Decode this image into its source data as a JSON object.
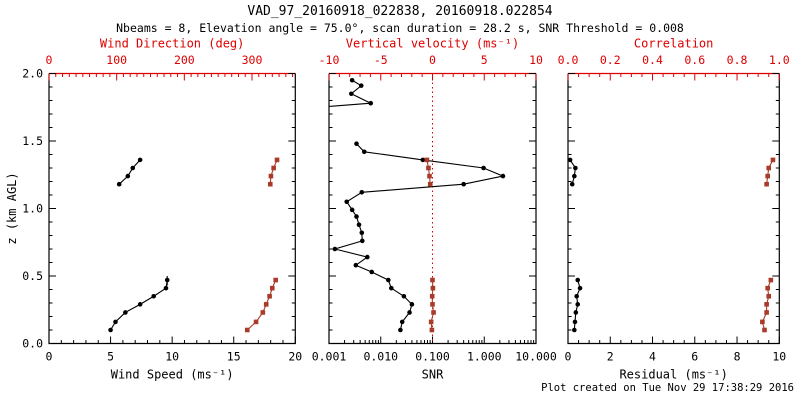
{
  "header": {
    "title": "VAD_97_20160918_022838, 20160918.022854",
    "subtitle": "Nbeams = 8, Elevation angle = 75.0°, scan duration = 28.2 s, SNR Threshold = 0.008"
  },
  "footer": {
    "created": "Plot created on Tue Nov 29 17:38:29 2016"
  },
  "colors": {
    "background": "#ffffff",
    "axis_black": "#000000",
    "axis_red": "#dd0000",
    "data_black": "#000000",
    "data_red": "#a93b2a"
  },
  "chart_data": [
    {
      "name": "wind-panel",
      "type": "scatter",
      "ylabel": "z (km AGL)",
      "ylim": [
        0,
        2
      ],
      "yticks": {
        "values": [
          0,
          0.5,
          1,
          1.5,
          2
        ],
        "labels": [
          "0.0",
          "0.5",
          "1.0",
          "1.5",
          "2.0"
        ],
        "minor_step": 0.1
      },
      "show_ytick_labels": true,
      "bottom_axis": {
        "label": "Wind Speed (ms⁻¹)",
        "scale": "linear",
        "min": 0,
        "max": 20,
        "ticks": {
          "values": [
            0,
            5,
            10,
            15,
            20
          ],
          "labels": [
            "0",
            "5",
            "10",
            "15",
            "20"
          ]
        },
        "minor_step": 1
      },
      "top_axis": {
        "label": "Wind Direction (deg)",
        "scale": "linear",
        "min": 0,
        "max": 364,
        "ticks": {
          "values": [
            0,
            100,
            200,
            300
          ],
          "labels": [
            "0",
            "100",
            "200",
            "300"
          ]
        },
        "minor_step": 10
      },
      "series": [
        {
          "name": "wind-speed",
          "axis": "bottom",
          "color": "black",
          "marker": "circle",
          "segments": [
            {
              "z": [
                0.1,
                0.16,
                0.23,
                0.29,
                0.35,
                0.41,
                0.47
              ],
              "v": [
                5.0,
                5.4,
                6.2,
                7.4,
                8.5,
                9.5,
                9.6
              ]
            },
            {
              "z": [
                1.18,
                1.24,
                1.3,
                1.36
              ],
              "v": [
                5.7,
                6.4,
                6.8,
                7.4
              ]
            }
          ],
          "error_bar": {
            "v": 9.6,
            "z_from": 0.43,
            "z_to": 0.5
          }
        },
        {
          "name": "wind-direction",
          "axis": "top",
          "color": "red",
          "marker": "square",
          "segments": [
            {
              "z": [
                0.1,
                0.16,
                0.23,
                0.29,
                0.35,
                0.41,
                0.47
              ],
              "v": [
                293,
                306,
                316,
                321,
                326,
                330,
                335
              ]
            },
            {
              "z": [
                1.18,
                1.24,
                1.3,
                1.36
              ],
              "v": [
                327,
                328,
                332,
                337
              ]
            }
          ]
        }
      ]
    },
    {
      "name": "snr-panel",
      "type": "scatter",
      "ylim": [
        0,
        2
      ],
      "yticks": {
        "values": [
          0,
          0.5,
          1,
          1.5,
          2
        ],
        "labels": [
          "0.0",
          "0.5",
          "1.0",
          "1.5",
          "2.0"
        ],
        "minor_step": 0.1
      },
      "show_ytick_labels": false,
      "bottom_axis": {
        "label": "SNR",
        "scale": "log",
        "min": 0.001,
        "max": 10,
        "ticks": {
          "values": [
            0.001,
            0.01,
            0.1,
            1,
            10
          ],
          "labels": [
            "0.001",
            "0.010",
            "0.100",
            "1.000",
            "10.000"
          ]
        }
      },
      "top_axis": {
        "label": "Vertical velocity (ms⁻¹)",
        "scale": "linear",
        "min": -10,
        "max": 10,
        "ticks": {
          "values": [
            -10,
            -5,
            0,
            5,
            10
          ],
          "labels": [
            "-10",
            "-5",
            "0",
            "5",
            "10"
          ]
        },
        "minor_step": 1
      },
      "reference_line": {
        "axis": "top",
        "value": 0,
        "style": "dotted",
        "color": "red"
      },
      "series": [
        {
          "name": "snr",
          "axis": "bottom",
          "color": "black",
          "marker": "circle",
          "segments": [
            {
              "z": [
                0.1,
                0.16,
                0.23,
                0.29,
                0.35,
                0.41,
                0.47,
                0.53,
                0.58,
                0.64,
                0.7,
                0.76,
                0.82,
                0.88,
                0.94,
                0.99,
                1.05,
                1.12,
                1.18,
                1.24,
                1.3,
                1.36,
                1.42,
                1.48
              ],
              "v": [
                0.024,
                0.026,
                0.036,
                0.04,
                0.028,
                0.016,
                0.014,
                0.0067,
                0.0033,
                0.0055,
                0.0013,
                0.0044,
                0.0043,
                0.0038,
                0.0034,
                0.0028,
                0.0022,
                0.0043,
                0.4,
                2.3,
                0.97,
                0.065,
                0.0048,
                0.0034
              ]
            },
            {
              "z": [
                1.78,
                1.85,
                1.91,
                1.95
              ],
              "v": [
                0.0064,
                0.0027,
                0.0042,
                0.0028
              ],
              "lead_in": {
                "z": 1.755,
                "v": 0.0009
              }
            }
          ]
        },
        {
          "name": "vertical-velocity",
          "axis": "top",
          "color": "red",
          "marker": "square",
          "segments": [
            {
              "z": [
                0.1,
                0.16,
                0.23,
                0.29,
                0.35,
                0.41,
                0.47
              ],
              "v": [
                -0.06,
                -0.13,
                0.1,
                0.0,
                -0.03,
                0.04,
                0.0
              ]
            },
            {
              "z": [
                1.18,
                1.24,
                1.3,
                1.36
              ],
              "v": [
                -0.22,
                -0.29,
                -0.39,
                -0.54
              ]
            }
          ]
        }
      ]
    },
    {
      "name": "residual-panel",
      "type": "scatter",
      "ylim": [
        0,
        2
      ],
      "yticks": {
        "values": [
          0,
          0.5,
          1,
          1.5,
          2
        ],
        "labels": [
          "0.0",
          "0.5",
          "1.0",
          "1.5",
          "2.0"
        ],
        "minor_step": 0.1
      },
      "show_ytick_labels": false,
      "bottom_axis": {
        "label": "Residual (ms⁻¹)",
        "scale": "linear",
        "min": 0,
        "max": 10,
        "ticks": {
          "values": [
            0,
            2,
            4,
            6,
            8,
            10
          ],
          "labels": [
            "0",
            "2",
            "4",
            "6",
            "8",
            "10"
          ]
        },
        "minor_step": 0.5
      },
      "top_axis": {
        "label": "Correlation",
        "scale": "linear",
        "min": 0,
        "max": 1,
        "ticks": {
          "values": [
            0,
            0.2,
            0.4,
            0.6,
            0.8,
            1
          ],
          "labels": [
            "0.0",
            "0.2",
            "0.4",
            "0.6",
            "0.8",
            "1.0"
          ]
        },
        "minor_step": 0.05
      },
      "series": [
        {
          "name": "residual",
          "axis": "bottom",
          "color": "black",
          "marker": "circle",
          "segments": [
            {
              "z": [
                0.1,
                0.16,
                0.23,
                0.29,
                0.35,
                0.41,
                0.47
              ],
              "v": [
                0.3,
                0.33,
                0.37,
                0.46,
                0.41,
                0.57,
                0.46
              ]
            },
            {
              "z": [
                1.18,
                1.24,
                1.3,
                1.36
              ],
              "v": [
                0.2,
                0.3,
                0.35,
                0.1
              ]
            }
          ]
        },
        {
          "name": "correlation",
          "axis": "top",
          "color": "red",
          "marker": "square",
          "segments": [
            {
              "z": [
                0.1,
                0.16,
                0.23,
                0.29,
                0.35,
                0.41,
                0.47
              ],
              "v": [
                0.93,
                0.92,
                0.94,
                0.94,
                0.95,
                0.945,
                0.96
              ]
            },
            {
              "z": [
                1.18,
                1.24,
                1.3,
                1.36
              ],
              "v": [
                0.94,
                0.945,
                0.95,
                0.97
              ]
            }
          ]
        }
      ]
    }
  ]
}
